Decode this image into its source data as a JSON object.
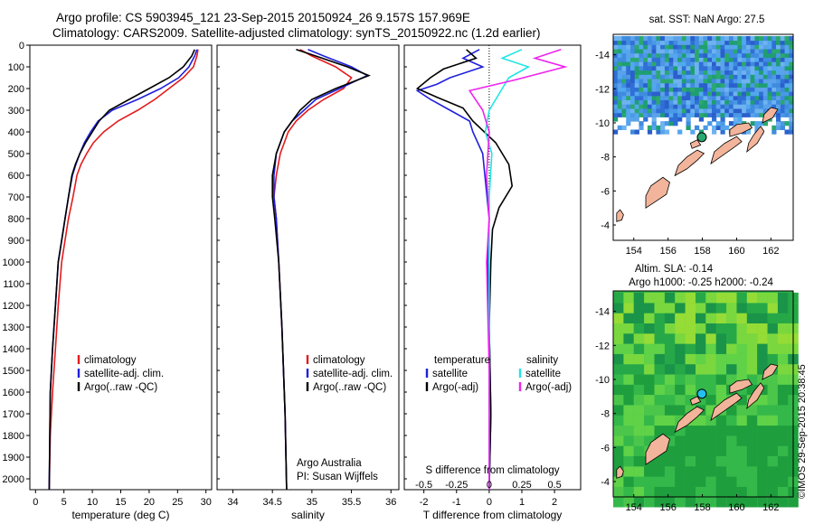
{
  "header": {
    "title_line1": "Argo profile: CS 5903945_121 23-Sep-2015 20150924_26 9.157S 157.969E",
    "title_line2": "Climatology: CARS2009. Satellite-adjusted climatology: synTS_20150922.nc (1.2d earlier)"
  },
  "colors": {
    "climatology": "#e41a1c",
    "satellite": "#1f1fdd",
    "argo": "#000000",
    "satellite_s": "#22e5e5",
    "argo_s": "#ee22ee",
    "land": "#f2b49a"
  },
  "credit": "©IMOS 29-Sep-2015 20:38:45",
  "chart_data": [
    {
      "type": "line",
      "panel": "temperature",
      "xlabel": "temperature (deg C)",
      "ylabel": "",
      "xlim": [
        -1,
        31
      ],
      "ylim": [
        2050,
        0
      ],
      "xticks": [
        0,
        5,
        10,
        15,
        20,
        25,
        30
      ],
      "yticks": [
        0,
        100,
        200,
        300,
        400,
        500,
        600,
        700,
        800,
        900,
        1000,
        1100,
        1200,
        1300,
        1400,
        1500,
        1600,
        1700,
        1800,
        1900,
        2000
      ],
      "legend": {
        "placement": "lower-center",
        "entries": [
          "climatology",
          "satellite-adj. clim.",
          "Argo(..raw -QC)"
        ]
      },
      "series": [
        {
          "name": "climatology",
          "color_key": "climatology",
          "x": [
            28.6,
            28.4,
            27.8,
            26.0,
            23.5,
            21.0,
            18.0,
            14.5,
            12.0,
            10.2,
            9.0,
            8.0,
            7.3,
            6.6,
            5.8,
            5.2,
            4.6,
            4.0,
            3.5,
            3.0,
            2.6,
            2.4
          ],
          "y": [
            20,
            50,
            100,
            150,
            200,
            250,
            300,
            350,
            400,
            450,
            500,
            550,
            600,
            700,
            800,
            900,
            1000,
            1200,
            1400,
            1600,
            1800,
            2050
          ]
        },
        {
          "name": "satellite-adj. clim.",
          "color_key": "satellite",
          "x": [
            28.4,
            28.0,
            27.0,
            25.2,
            22.0,
            18.0,
            13.5,
            11.0,
            9.7,
            8.6,
            7.8,
            7.1,
            6.5,
            5.8,
            5.2,
            4.6,
            4.0,
            3.5,
            3.0,
            2.6,
            2.4
          ],
          "y": [
            20,
            50,
            100,
            150,
            200,
            250,
            300,
            350,
            400,
            450,
            500,
            550,
            600,
            700,
            800,
            900,
            1000,
            1200,
            1400,
            1600,
            2050
          ]
        },
        {
          "name": "Argo(..raw -QC)",
          "color_key": "argo",
          "x": [
            28.0,
            27.5,
            26.0,
            23.5,
            20.0,
            16.5,
            13.0,
            11.2,
            10.0,
            8.8,
            7.8,
            7.0,
            6.4,
            5.8,
            5.2,
            4.6,
            4.0,
            3.5,
            3.0,
            2.6,
            2.4
          ],
          "y": [
            20,
            50,
            100,
            150,
            200,
            250,
            300,
            350,
            400,
            450,
            500,
            550,
            600,
            700,
            800,
            900,
            1000,
            1200,
            1400,
            1600,
            2050
          ]
        }
      ]
    },
    {
      "type": "line",
      "panel": "salinity",
      "xlabel": "salinity",
      "xlim": [
        33.8,
        36.1
      ],
      "ylim": [
        2050,
        0
      ],
      "xticks": [
        34,
        34.5,
        35,
        35.5,
        36
      ],
      "legend": {
        "placement": "lower-center",
        "entries": [
          "climatology",
          "satellite-adj. clim.",
          "Argo(..raw -QC)"
        ]
      },
      "annotations": [
        "Argo Australia",
        "PI: Susan Wijffels"
      ],
      "series": [
        {
          "name": "climatology",
          "color_key": "climatology",
          "x": [
            34.85,
            35.0,
            35.3,
            35.5,
            35.4,
            35.15,
            34.95,
            34.8,
            34.7,
            34.6,
            34.55,
            34.52,
            34.55,
            34.58,
            34.62,
            34.66,
            34.68
          ],
          "y": [
            20,
            50,
            100,
            150,
            200,
            250,
            300,
            350,
            400,
            500,
            600,
            700,
            800,
            1000,
            1300,
            1700,
            2050
          ]
        },
        {
          "name": "satellite-adj. clim.",
          "color_key": "satellite",
          "x": [
            34.95,
            35.15,
            35.5,
            35.7,
            35.35,
            35.05,
            34.9,
            34.75,
            34.65,
            34.55,
            34.52,
            34.52,
            34.55,
            34.58,
            34.62,
            34.66,
            34.68
          ],
          "y": [
            20,
            50,
            100,
            140,
            200,
            250,
            300,
            350,
            400,
            500,
            600,
            700,
            800,
            1000,
            1300,
            1700,
            2050
          ]
        },
        {
          "name": "Argo(..raw -QC)",
          "color_key": "argo",
          "x": [
            34.8,
            35.05,
            35.45,
            35.72,
            35.3,
            35.0,
            34.85,
            34.75,
            34.65,
            34.55,
            34.5,
            34.5,
            34.53,
            34.58,
            34.62,
            34.66,
            34.68
          ],
          "y": [
            20,
            50,
            100,
            140,
            200,
            250,
            300,
            350,
            400,
            500,
            600,
            700,
            800,
            1000,
            1300,
            1700,
            2050
          ]
        }
      ]
    },
    {
      "type": "line",
      "panel": "difference",
      "xlabel": "T difference from climatology",
      "top_axis_label": "S difference from climatology",
      "xlim": [
        -2.6,
        2.8
      ],
      "slim": [
        -0.65,
        0.7
      ],
      "ylim": [
        2050,
        0
      ],
      "xticks": [
        -2,
        -1,
        0,
        1,
        2
      ],
      "sticks": [
        -0.5,
        -0.25,
        0,
        0.25,
        0.5
      ],
      "legend": {
        "placement": "lower-center",
        "groups": [
          "temperature",
          "salinity"
        ],
        "entries": [
          "satellite",
          "Argo(-adj)",
          "satellite",
          "Argo(-adj)"
        ]
      },
      "series": [
        {
          "name": "satellite",
          "group": "temperature",
          "color_key": "satellite",
          "axis": "T",
          "x": [
            -0.3,
            -0.8,
            -0.2,
            -1.2,
            -1.6,
            -2.2,
            -1.8,
            -1.2,
            -0.6,
            -0.5,
            -0.2,
            -0.1,
            0.0,
            -0.05,
            0.0,
            0.05,
            0.0
          ],
          "y": [
            20,
            60,
            100,
            150,
            180,
            210,
            250,
            300,
            350,
            400,
            500,
            650,
            800,
            1000,
            1300,
            1700,
            2050
          ]
        },
        {
          "name": "Argo(-adj)",
          "group": "temperature",
          "color_key": "argo",
          "axis": "T",
          "x": [
            -0.7,
            -0.4,
            -1.4,
            -1.8,
            -2.2,
            -1.6,
            -0.8,
            -0.5,
            0.2,
            0.6,
            0.7,
            0.3,
            0.1,
            0.05,
            0.0,
            0.05,
            0.0
          ],
          "y": [
            20,
            60,
            110,
            150,
            200,
            240,
            290,
            350,
            450,
            550,
            650,
            750,
            850,
            1000,
            1300,
            1700,
            2050
          ]
        },
        {
          "name": "satellite",
          "group": "salinity",
          "color_key": "satellite_s",
          "axis": "S",
          "x": [
            0.25,
            0.1,
            0.3,
            0.15,
            0.1,
            0.05,
            0.0,
            -0.03,
            0.02,
            0.0,
            0.0,
            0.0
          ],
          "y": [
            20,
            60,
            100,
            150,
            200,
            250,
            300,
            400,
            500,
            700,
            1000,
            2050
          ]
        },
        {
          "name": "Argo(-adj)",
          "group": "salinity",
          "color_key": "argo_s",
          "axis": "S",
          "x": [
            0.55,
            0.35,
            0.58,
            0.2,
            -0.15,
            -0.05,
            0.0,
            -0.02,
            0.0,
            -0.02,
            0.0,
            0.0
          ],
          "y": [
            20,
            60,
            100,
            160,
            210,
            300,
            400,
            600,
            800,
            1000,
            1500,
            2050
          ]
        }
      ]
    },
    {
      "type": "heatmap",
      "panel": "map-sst",
      "title": "sat. SST: NaN Argo: 27.5",
      "xlim": [
        152.8,
        163.3
      ],
      "ylim": [
        -15.2,
        -3.1
      ],
      "xticks": [
        154,
        156,
        158,
        160,
        162
      ],
      "yticks": [
        -4,
        -6,
        -8,
        -10,
        -12,
        -14
      ],
      "marker": {
        "lon": 157.969,
        "lat": -9.157
      }
    },
    {
      "type": "heatmap",
      "panel": "map-sla",
      "title_line1": "Altim. SLA: -0.14",
      "title_line2": "Argo h1000: -0.25 h2000: -0.24",
      "xlim": [
        152.8,
        163.3
      ],
      "ylim": [
        -15.2,
        -3.1
      ],
      "xticks": [
        154,
        156,
        158,
        160,
        162
      ],
      "yticks": [
        -4,
        -6,
        -8,
        -10,
        -12,
        -14
      ],
      "marker": {
        "lon": 157.969,
        "lat": -9.157
      }
    }
  ]
}
